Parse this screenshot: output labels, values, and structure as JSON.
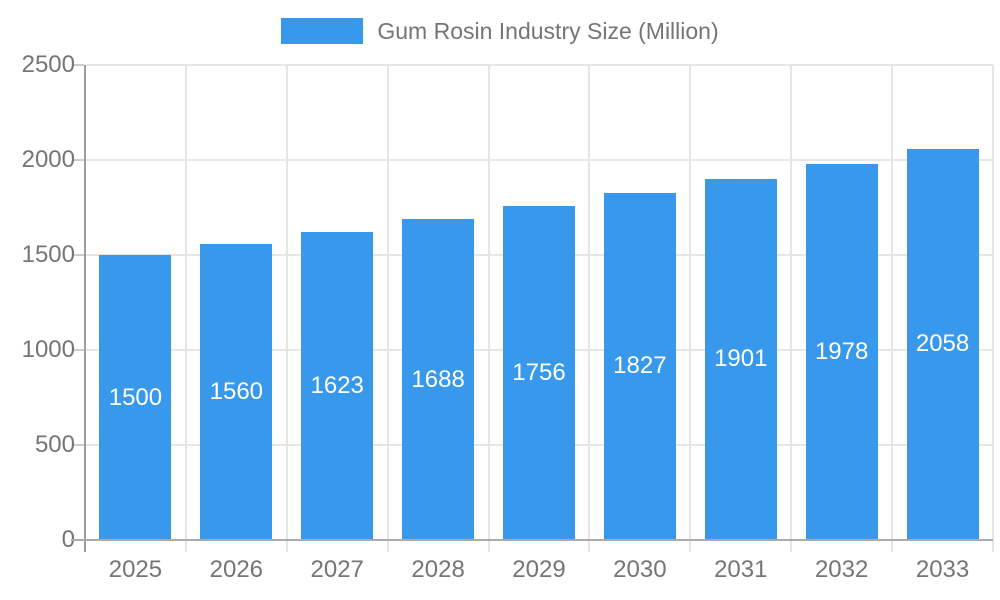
{
  "legend": {
    "label": "Gum Rosin Industry Size (Million)",
    "swatch_color": "#3899EC"
  },
  "chart_data": {
    "type": "bar",
    "title": "Gum Rosin Industry Size (Million)",
    "series_name": "Gum Rosin Industry Size (Million)",
    "categories": [
      "2025",
      "2026",
      "2027",
      "2028",
      "2029",
      "2030",
      "2031",
      "2032",
      "2033"
    ],
    "values": [
      1500,
      1560,
      1623,
      1688,
      1756,
      1827,
      1901,
      1978,
      2058
    ],
    "xlabel": "",
    "ylabel": "",
    "ylim": [
      0,
      2500
    ],
    "yticks": [
      0,
      500,
      1000,
      1500,
      2000,
      2500
    ],
    "grid": true,
    "legend_position": "top",
    "bar_color": "#3899EC",
    "value_label_color": "#ffffff",
    "axis_text_color": "#757575"
  }
}
